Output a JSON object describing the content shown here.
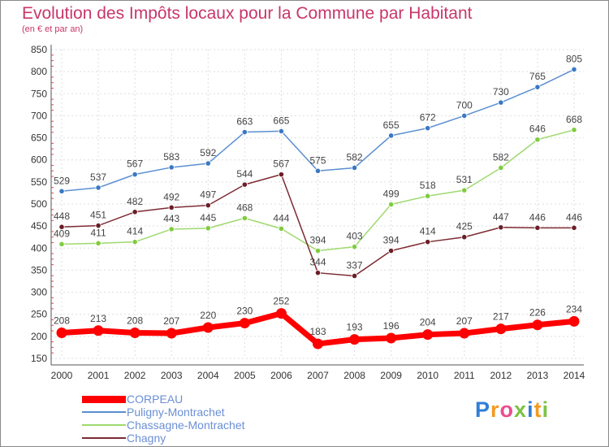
{
  "chart_data": {
    "type": "line",
    "title": "Evolution des Impôts locaux pour la Commune par Habitant",
    "subtitle": "(en € et par an)",
    "xlabel": "",
    "ylabel": "",
    "x": [
      "2000",
      "2001",
      "2002",
      "2003",
      "2004",
      "2005",
      "2006",
      "2007",
      "2008",
      "2009",
      "2010",
      "2011",
      "2012",
      "2013",
      "2014"
    ],
    "yticks": [
      150,
      200,
      250,
      300,
      350,
      400,
      450,
      500,
      550,
      600,
      650,
      700,
      750,
      800,
      850
    ],
    "ylim": [
      150,
      850
    ],
    "grid": true,
    "legend_position": "bottom-left",
    "series": [
      {
        "name": "Puligny-Montrachet",
        "color": "#5b8fd0",
        "marker": "#3a78c3",
        "values": [
          529,
          537,
          567,
          583,
          592,
          663,
          665,
          575,
          582,
          655,
          672,
          700,
          730,
          765,
          805
        ]
      },
      {
        "name": "Chassagne-Montrachet",
        "color": "#9ed96e",
        "marker": "#7fcc3f",
        "values": [
          409,
          411,
          414,
          443,
          445,
          468,
          444,
          394,
          403,
          499,
          518,
          531,
          582,
          646,
          668
        ]
      },
      {
        "name": "Chagny",
        "color": "#7d2a33",
        "marker": "#6a1e27",
        "values": [
          448,
          451,
          482,
          492,
          497,
          544,
          567,
          344,
          337,
          394,
          414,
          425,
          447,
          446,
          446
        ]
      },
      {
        "name": "CORPEAU",
        "color": "#ff0000",
        "marker": "#ff0000",
        "values": [
          208,
          213,
          208,
          207,
          220,
          230,
          252,
          183,
          193,
          196,
          204,
          207,
          217,
          226,
          234
        ]
      }
    ]
  },
  "legend": [
    {
      "label": "CORPEAU",
      "color": "#ff0000",
      "thickness": 9
    },
    {
      "label": "Puligny-Montrachet",
      "color": "#5b8fd0",
      "thickness": 2
    },
    {
      "label": "Chassagne-Montrachet",
      "color": "#9ed96e",
      "thickness": 2
    },
    {
      "label": "Chagny",
      "color": "#7d2a33",
      "thickness": 2
    }
  ],
  "logo": {
    "letters": [
      {
        "ch": "P",
        "color": "#2f7fd6"
      },
      {
        "ch": "r",
        "color": "#f39a1f"
      },
      {
        "ch": "o",
        "color": "#e84f8e"
      },
      {
        "ch": "x",
        "color": "#7cc243"
      },
      {
        "ch": "i",
        "color": "#2f7fd6"
      },
      {
        "ch": "t",
        "color": "#f39a1f"
      },
      {
        "ch": "i",
        "color": "#7cc243"
      }
    ]
  }
}
